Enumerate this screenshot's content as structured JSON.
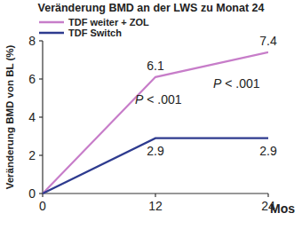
{
  "chart_data": {
    "type": "line",
    "title": "Veränderung BMD an der LWS zu Monat 24",
    "y_label": "Veränderung BMD von BL (%)",
    "x_label": "Mos",
    "x": [
      0,
      12,
      24
    ],
    "xlim": [
      0,
      24
    ],
    "xticks": [
      0,
      12,
      24
    ],
    "ylim": [
      0,
      8
    ],
    "yticks": [
      0,
      2,
      4,
      6,
      8
    ],
    "legend": "upper left",
    "data_labels": true,
    "series": [
      {
        "name": "TDF weiter + ZOL",
        "color": "#c77dc9",
        "values": [
          0,
          6.1,
          7.4
        ],
        "value_labels": [
          null,
          "6.1",
          "7.4"
        ]
      },
      {
        "name": "TDF Switch",
        "color": "#2e3b8f",
        "values": [
          0,
          2.9,
          2.9
        ],
        "value_labels": [
          null,
          "2.9",
          "2.9"
        ]
      }
    ],
    "annotations": [
      "P < .001",
      "P < .001"
    ]
  }
}
